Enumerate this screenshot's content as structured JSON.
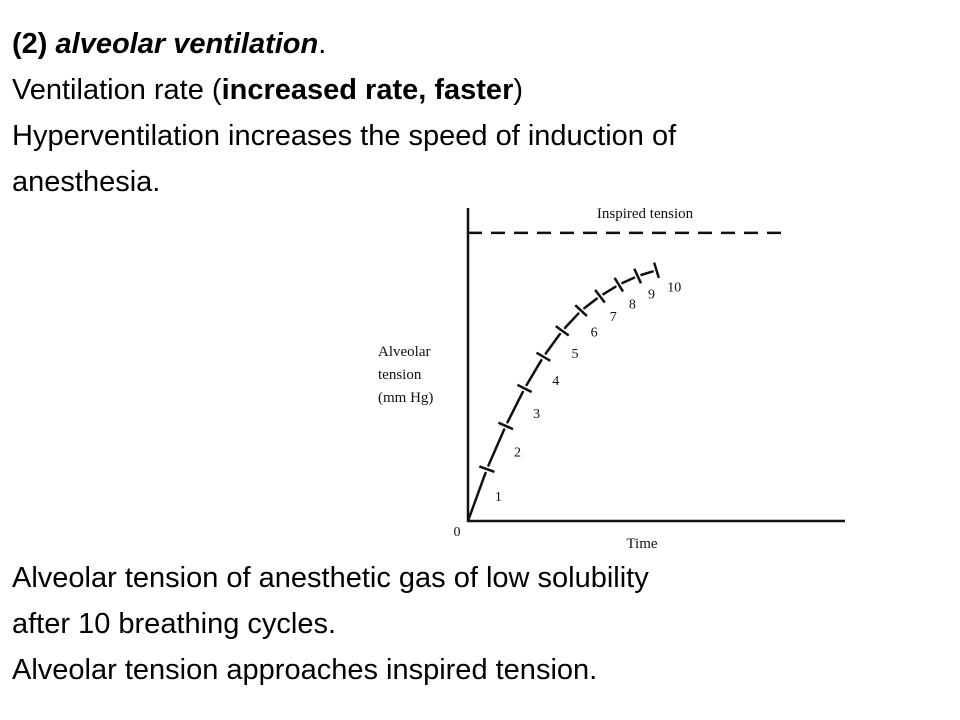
{
  "slide": {
    "heading_number": "(2)",
    "heading_text": "alveolar ventilation",
    "heading_suffix": ".",
    "line2_prefix": "Ventilation rate (",
    "line2_bold": "increased rate, faster",
    "line2_suffix": ")",
    "line3": "Hyperventilation increases the speed of induction of",
    "line4": "anesthesia.",
    "caption1": "Alveolar tension of  anesthetic gas of low solubility",
    "caption2": "after 10 breathing cycles.",
    "caption3": "Alveolar tension approaches inspired tension."
  },
  "chart_data": {
    "type": "line",
    "title": "",
    "xlabel": "Time",
    "ylabel": "Alveolar tension (mm Hg)",
    "ylabel_lines": [
      "Alveolar",
      "tension",
      "(mm Hg)"
    ],
    "origin_label": "0",
    "reference_line": {
      "label": "Inspired tension",
      "value": 1.0,
      "style": "dashed"
    },
    "series": [
      {
        "cycles": [
          "1",
          "2",
          "3",
          "4",
          "5",
          "6",
          "7",
          "8",
          "9",
          "10"
        ],
        "x": [
          1,
          2,
          3,
          4,
          5,
          6,
          7,
          8,
          9,
          10
        ],
        "y": [
          0.18,
          0.33,
          0.46,
          0.57,
          0.66,
          0.73,
          0.78,
          0.82,
          0.85,
          0.87
        ]
      }
    ],
    "xlim": [
      0,
      20
    ],
    "ylim": [
      0,
      1.1
    ],
    "grid": false
  },
  "colors": {
    "text": "#000000",
    "background": "#ffffff",
    "ink": "#111111"
  }
}
